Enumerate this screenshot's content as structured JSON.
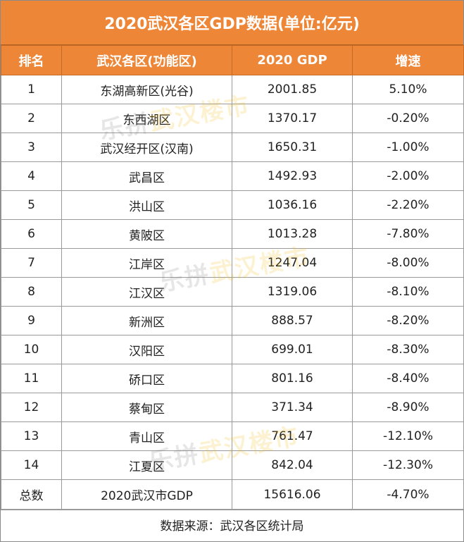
{
  "chart_data": {
    "type": "table",
    "title": "2020武汉各区GDP数据(单位:亿元)",
    "columns": [
      "排名",
      "武汉各区(功能区)",
      "2020 GDP",
      "增速"
    ],
    "rows": [
      [
        "1",
        "东湖高新区(光谷)",
        "2001.85",
        "5.10%"
      ],
      [
        "2",
        "东西湖区",
        "1370.17",
        "-0.20%"
      ],
      [
        "3",
        "武汉经开区(汉南)",
        "1650.31",
        "-1.00%"
      ],
      [
        "4",
        "武昌区",
        "1492.93",
        "-2.00%"
      ],
      [
        "5",
        "洪山区",
        "1036.16",
        "-2.20%"
      ],
      [
        "6",
        "黄陂区",
        "1013.28",
        "-7.80%"
      ],
      [
        "7",
        "江岸区",
        "1247.04",
        "-8.00%"
      ],
      [
        "8",
        "江汉区",
        "1319.06",
        "-8.10%"
      ],
      [
        "9",
        "新洲区",
        "888.57",
        "-8.20%"
      ],
      [
        "10",
        "汉阳区",
        "699.01",
        "-8.30%"
      ],
      [
        "11",
        "硚口区",
        "801.16",
        "-8.40%"
      ],
      [
        "12",
        "蔡甸区",
        "371.34",
        "-8.90%"
      ],
      [
        "13",
        "青山区",
        "761.47",
        "-12.10%"
      ],
      [
        "14",
        "江夏区",
        "842.04",
        "-12.30%"
      ]
    ],
    "total": [
      "总数",
      "2020武汉市GDP",
      "15616.06",
      "-4.70%"
    ],
    "source": "数据来源：武汉各区统计局"
  },
  "watermark": {
    "part1": "乐拼",
    "part2": "武汉楼市"
  },
  "colors": {
    "header": "#ee8638",
    "border": "#9a9a9a"
  }
}
